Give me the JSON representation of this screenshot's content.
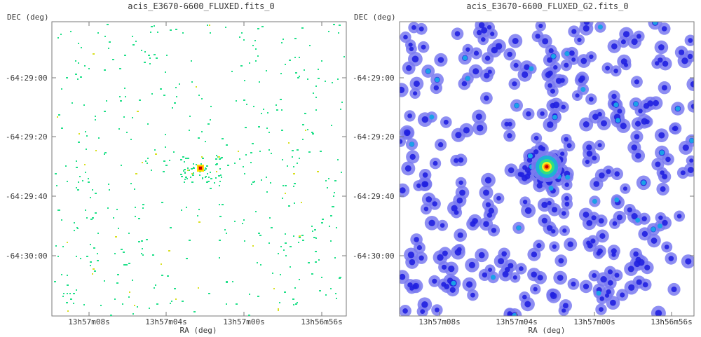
{
  "panels": [
    {
      "title": "acis_E3670-6600_FLUXED.fits_0",
      "ylabel": "DEC (deg)",
      "xlabel": "RA (deg)",
      "y_ticks": [
        "-64:29:00",
        "-64:29:20",
        "-64:29:40",
        "-64:30:00"
      ],
      "x_ticks": [
        "13h57m08s",
        "13h57m04s",
        "13h57m00s",
        "13h56m56s"
      ],
      "style": "raw-sparse-counts"
    },
    {
      "title": "acis_E3670-6600_FLUXED_G2.fits_0",
      "ylabel": "DEC (deg)",
      "xlabel": "RA (deg)",
      "y_ticks": [
        "-64:29:00",
        "-64:29:20",
        "-64:29:40",
        "-64:30:00"
      ],
      "x_ticks": [
        "13h57m08s",
        "13h57m04s",
        "13h57m00s",
        "13h56m56s"
      ],
      "style": "gaussian-smoothed"
    }
  ],
  "colors": {
    "frame": "#7a7a7a",
    "sparse_pixel": "#22e08a",
    "sparse_pixel_alt": "#d8e020",
    "blob_outer": "#7a7af0",
    "blob_core": "#2020e0",
    "source_peak": "#c80000"
  }
}
